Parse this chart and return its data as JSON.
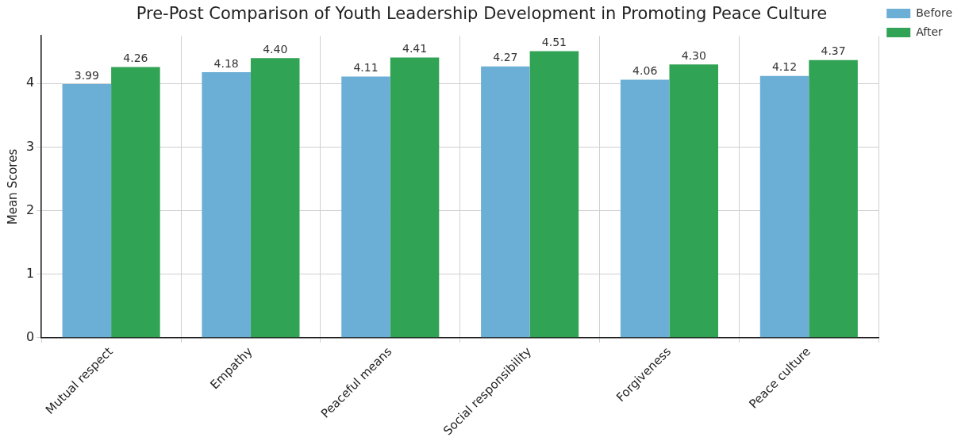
{
  "chart_data": {
    "type": "bar",
    "title": "Pre-Post Comparison of Youth Leadership Development in Promoting Peace Culture",
    "ylabel": "Mean Scores",
    "categories": [
      "Mutual respect",
      "Empathy",
      "Peaceful means",
      "Social responsibility",
      "Forgiveness",
      "Peace culture"
    ],
    "series": [
      {
        "name": "Before",
        "color": "#6baed6",
        "values": [
          3.99,
          4.18,
          4.11,
          4.27,
          4.06,
          4.12
        ],
        "value_labels": [
          "3.99",
          "4.18",
          "4.11",
          "4.27",
          "4.06",
          "4.12"
        ]
      },
      {
        "name": "After",
        "color": "#31a354",
        "values": [
          4.26,
          4.4,
          4.41,
          4.51,
          4.3,
          4.37
        ],
        "value_labels": [
          "4.26",
          "4.40",
          "4.41",
          "4.51",
          "4.30",
          "4.37"
        ]
      }
    ],
    "ylim": [
      0,
      4.75
    ],
    "yticks": [
      0,
      1,
      2,
      3,
      4
    ],
    "grid": true,
    "legend": "right"
  }
}
